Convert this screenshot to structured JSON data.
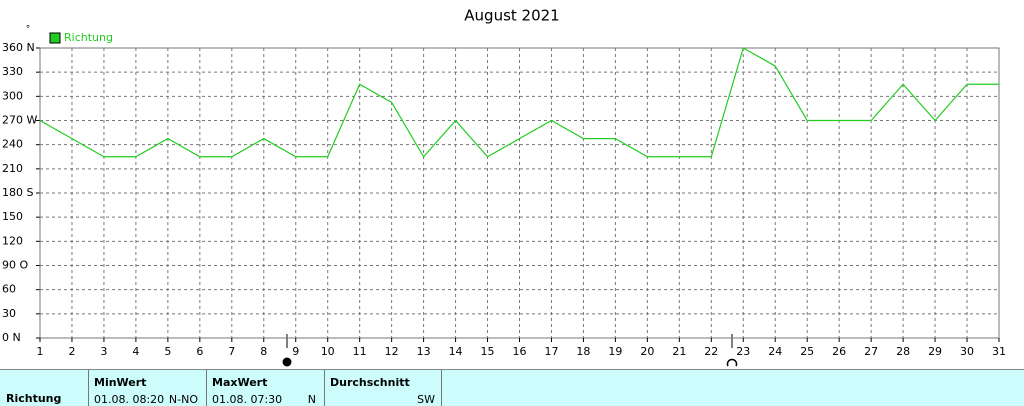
{
  "chart_data": {
    "type": "line",
    "title": "August 2021",
    "y_label": "°",
    "x": [
      1,
      2,
      3,
      4,
      5,
      6,
      7,
      8,
      9,
      10,
      11,
      12,
      13,
      14,
      15,
      16,
      17,
      18,
      19,
      20,
      21,
      22,
      23,
      24,
      25,
      26,
      27,
      28,
      29,
      30,
      31
    ],
    "xlim": [
      1,
      31
    ],
    "xticks": [
      1,
      2,
      3,
      4,
      5,
      6,
      7,
      8,
      9,
      10,
      11,
      12,
      13,
      14,
      15,
      16,
      17,
      18,
      19,
      20,
      21,
      22,
      23,
      24,
      25,
      26,
      27,
      28,
      29,
      30,
      31
    ],
    "ylim": [
      0,
      360
    ],
    "yticks": [
      {
        "value": 0,
        "label": "0  N"
      },
      30,
      60,
      {
        "value": 90,
        "label": "90  O"
      },
      120,
      150,
      {
        "value": 180,
        "label": "180 S"
      },
      210,
      240,
      {
        "value": 270,
        "label": "270 W"
      },
      300,
      330,
      {
        "value": 360,
        "label": "360 N"
      }
    ],
    "grid": true,
    "series": [
      {
        "name": "Richtung",
        "color": "#22cc22",
        "values": [
          270,
          247.5,
          225,
          225,
          247.5,
          225,
          225,
          247.5,
          225,
          225,
          315,
          292.5,
          225,
          270,
          225,
          247.5,
          270,
          247.5,
          247.5,
          225,
          225,
          225,
          360,
          337.5,
          270,
          270,
          270,
          315,
          270,
          315,
          315
        ]
      }
    ]
  },
  "summary": {
    "row_label": "Richtung",
    "min": {
      "header": "MinWert",
      "time": "01.08.  08:20",
      "value": "N-NO"
    },
    "max": {
      "header": "MaxWert",
      "time": "01.08.  07:30",
      "value": "N"
    },
    "avg": {
      "header": "Durchschnitt",
      "value": "SW"
    }
  }
}
